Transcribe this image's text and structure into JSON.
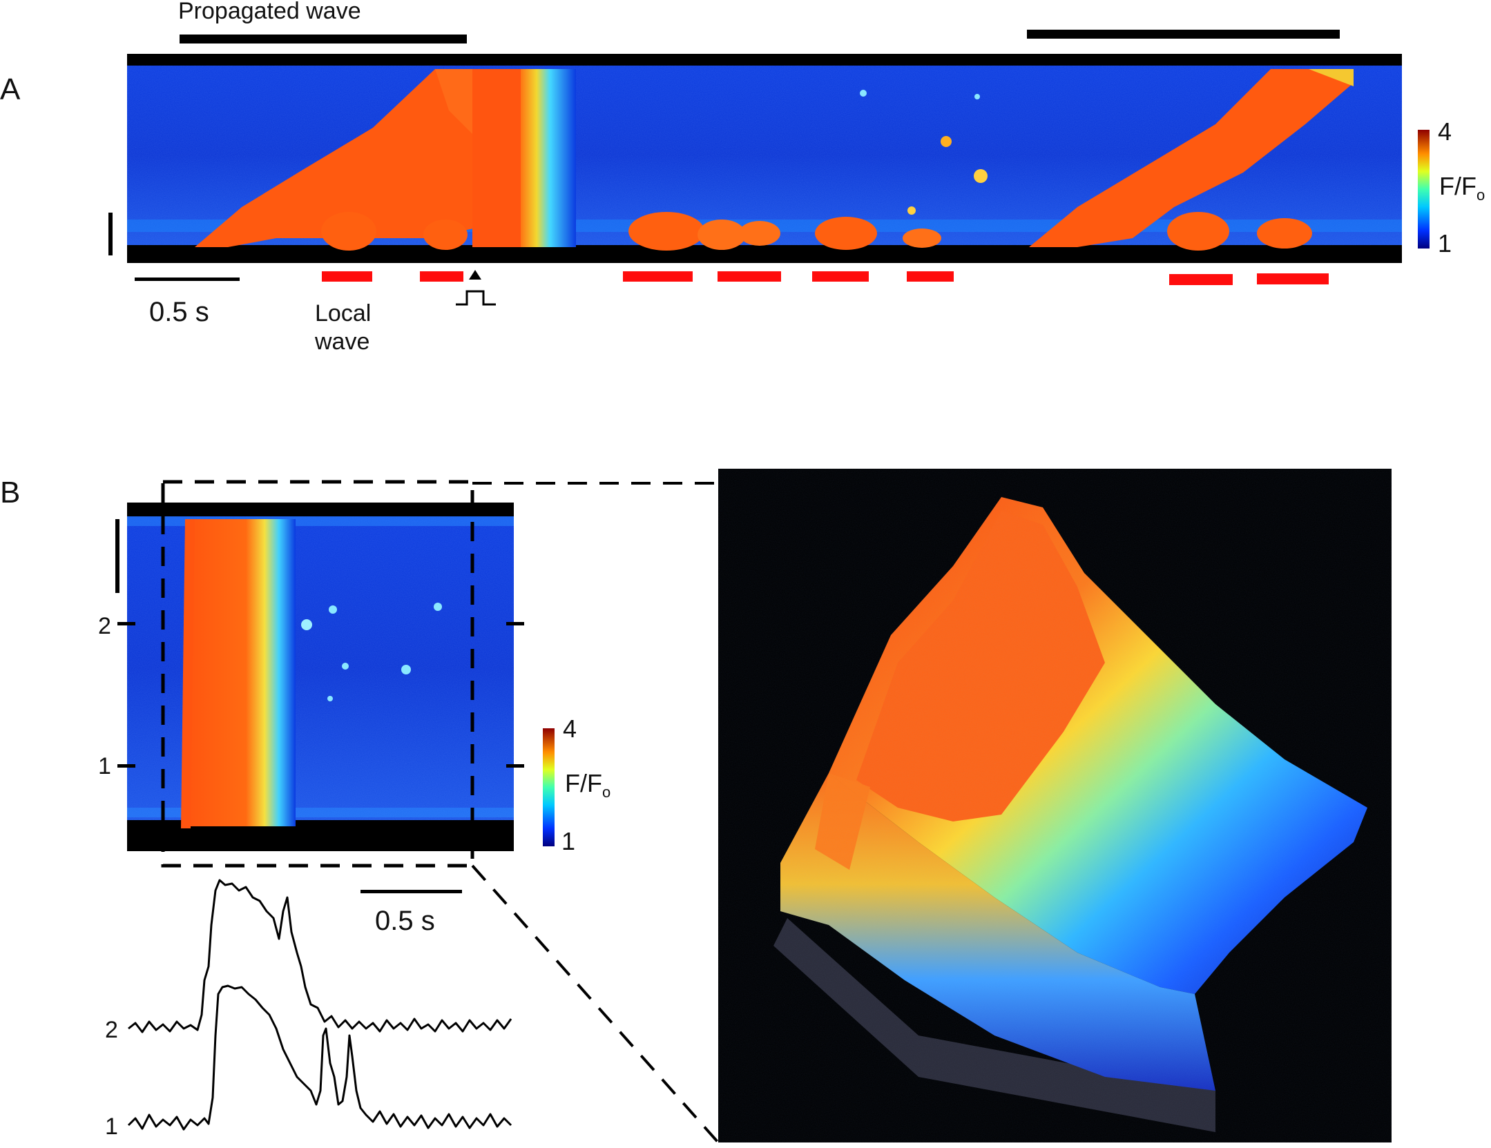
{
  "panel_a": {
    "letter": "A",
    "propagated_wave_label": "Propagated wave",
    "scale_time": "0.5 s",
    "local_wave_line1": "Local",
    "local_wave_line2": "wave",
    "colorbar_max": "4",
    "colorbar_min": "1",
    "colorbar_label": "F/F",
    "colorbar_label_sub": "o"
  },
  "panel_b": {
    "letter": "B",
    "row_label_2": "2",
    "row_label_1": "1",
    "colorbar_max": "4",
    "colorbar_min": "1",
    "colorbar_label": "F/F",
    "colorbar_label_sub": "o",
    "scale_time": "0.5 s",
    "trace_label_2": "2",
    "trace_label_1": "1"
  },
  "colors": {
    "background": "#0a2ad0",
    "wave": "#ff5a10",
    "marker_red": "#ff0d0d",
    "black": "#000000"
  }
}
